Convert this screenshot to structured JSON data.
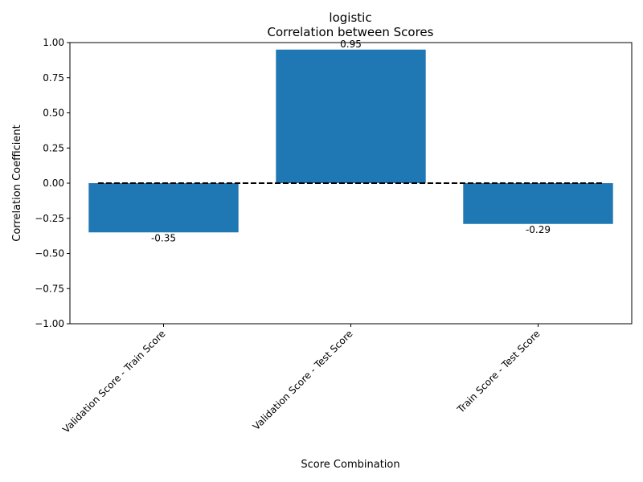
{
  "chart_data": {
    "type": "bar",
    "title": "logistic",
    "subtitle": "Correlation between Scores",
    "xlabel": "Score Combination",
    "ylabel": "Correlation Coefficient",
    "categories": [
      "Validation Score - Train Score",
      "Validation Score - Test Score",
      "Train Score - Test Score"
    ],
    "values": [
      -0.35,
      0.95,
      -0.29
    ],
    "data_labels": [
      "-0.35",
      "0.95",
      "-0.29"
    ],
    "ylim": [
      -1.0,
      1.0
    ],
    "yticks": [
      -1.0,
      -0.75,
      -0.5,
      -0.25,
      0.0,
      0.25,
      0.5,
      0.75,
      1.0
    ],
    "ytick_labels": [
      "−1.00",
      "−0.75",
      "−0.50",
      "−0.25",
      "0.00",
      "0.25",
      "0.50",
      "0.75",
      "1.00"
    ],
    "reference_line": {
      "y": 0,
      "style": "dashed",
      "color": "#000000"
    },
    "bar_color": "#1f77b4",
    "grid": false,
    "legend": "none"
  }
}
